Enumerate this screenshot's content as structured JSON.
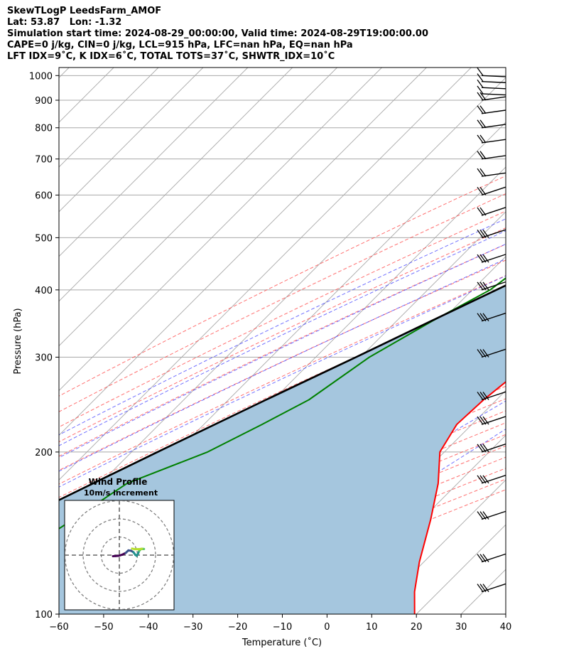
{
  "title_lines": [
    "SkewTLogP LeedsFarm_AMOF",
    "Lat: 53.87   Lon: -1.32",
    "Simulation start time: 2024-08-29_00:00:00, Valid time: 2024-08-29T19:00:00.00",
    "CAPE=0 j/kg, CIN=0 j/kg, LCL=915 hPa, LFC=nan hPa, EQ=nan hPa",
    "LFT IDX=9˚C, K IDX=6˚C, TOTAL TOTS=37˚C, SHWTR_IDX=10˚C"
  ],
  "chart_data": {
    "type": "line",
    "subtype": "skew-T log-P",
    "xlabel": "Temperature (˚C)",
    "ylabel": "Pressure (hPa)",
    "xlim": [
      -60,
      40
    ],
    "ylim": [
      1035,
      100
    ],
    "y_scale": "log",
    "x_ticks": [
      "−60",
      "−50",
      "−40",
      "−30",
      "−20",
      "−10",
      "0",
      "10",
      "20",
      "30",
      "40"
    ],
    "y_ticks": [
      "100",
      "200",
      "300",
      "400",
      "500",
      "600",
      "700",
      "800",
      "900",
      "1000"
    ],
    "grid": true,
    "series": [
      {
        "key": "temperature",
        "color": "#ff0000",
        "points": [
          [
            1000,
            15.6
          ],
          [
            975,
            13.6
          ],
          [
            950,
            12.6
          ],
          [
            925,
            11.8
          ],
          [
            900,
            11.0
          ],
          [
            850,
            10.8
          ],
          [
            800,
            10.4
          ],
          [
            750,
            10.0
          ],
          [
            700,
            9.4
          ],
          [
            650,
            9.0
          ],
          [
            600,
            8.0
          ],
          [
            550,
            6.0
          ],
          [
            500,
            4.0
          ],
          [
            450,
            0.9
          ],
          [
            400,
            -3.7
          ],
          [
            350,
            -7.5
          ],
          [
            300,
            -10.6
          ],
          [
            250,
            -12.9
          ],
          [
            225,
            -13.4
          ],
          [
            200,
            -11.0
          ],
          [
            175,
            -4.4
          ],
          [
            150,
            2.0
          ],
          [
            125,
            9.0
          ],
          [
            110,
            14.6
          ],
          [
            100,
            19.6
          ]
        ]
      },
      {
        "key": "dewpoint",
        "color": "#008000",
        "points": [
          [
            1000,
            9.5
          ],
          [
            975,
            9.4
          ],
          [
            950,
            9.0
          ],
          [
            925,
            8.5
          ],
          [
            900,
            7.5
          ],
          [
            850,
            3.5
          ],
          [
            800,
            -2.0
          ],
          [
            750,
            -7.0
          ],
          [
            700,
            -9.2
          ],
          [
            650,
            -9.0
          ],
          [
            600,
            -14.0
          ],
          [
            550,
            -25.0
          ],
          [
            500,
            -35.0
          ],
          [
            450,
            -34.0
          ],
          [
            400,
            -36.0
          ],
          [
            350,
            -42.0
          ],
          [
            300,
            -48.0
          ],
          [
            250,
            -52.0
          ],
          [
            225,
            -57.0
          ],
          [
            200,
            -63.0
          ],
          [
            175,
            -74.0
          ],
          [
            150,
            -78.0
          ],
          [
            125,
            -83.0
          ],
          [
            110,
            -86.0
          ],
          [
            100,
            -89.0
          ]
        ]
      },
      {
        "key": "parcel_profile",
        "color": "#000000",
        "points": [
          [
            1000,
            15.6
          ],
          [
            975,
            13.4
          ],
          [
            950,
            11.3
          ],
          [
            925,
            9.6
          ],
          [
            915,
            9.3
          ],
          [
            850,
            5.7
          ],
          [
            800,
            2.7
          ],
          [
            750,
            -0.5
          ],
          [
            700,
            -4.0
          ],
          [
            650,
            -7.8
          ],
          [
            600,
            -12.0
          ],
          [
            550,
            -16.8
          ],
          [
            500,
            -22.0
          ],
          [
            450,
            -27.9
          ],
          [
            400,
            -34.6
          ],
          [
            350,
            -42.3
          ],
          [
            300,
            -51.0
          ],
          [
            250,
            -61.6
          ],
          [
            200,
            -74.2
          ],
          [
            175,
            -81.6
          ],
          [
            150,
            -90.0
          ],
          [
            125,
            -100.0
          ],
          [
            100,
            -112.0
          ]
        ]
      }
    ],
    "lcl_pressure_hpa": 915,
    "shaded_region": "area between parcel profile and temperature",
    "wind_barb_pressures_hpa": [
      1000,
      975,
      950,
      925,
      900,
      850,
      800,
      750,
      700,
      650,
      600,
      550,
      500,
      450,
      400,
      350,
      300,
      250,
      225,
      200,
      175,
      150,
      125,
      110
    ],
    "reference_lines": [
      "isotherms",
      "dry adiabats",
      "moist adiabats",
      "mixing ratio lines"
    ],
    "colors": {
      "shading": "#a5c6de",
      "dry_adiabats": "#ff4040",
      "moist_adiabats": "#4040ff",
      "mixing_ratio": "#9932cc",
      "isotherms": "#a8a8a8"
    },
    "hodograph": {
      "title_lines": [
        "Wind Profile",
        "10m/s increment"
      ],
      "ring_increment_ms": 10,
      "rings": 3,
      "points_uv": [
        [
          -3.5,
          -0.6
        ],
        [
          -2.0,
          -0.5
        ],
        [
          -0.5,
          -0.4
        ],
        [
          1.5,
          0.2
        ],
        [
          3.5,
          1.2
        ],
        [
          5.0,
          2.6
        ],
        [
          6.5,
          2.4
        ],
        [
          7.8,
          1.6
        ],
        [
          8.8,
          0.2
        ],
        [
          9.6,
          -0.4
        ],
        [
          10.3,
          0.8
        ],
        [
          11.0,
          2.4
        ],
        [
          12.0,
          3.4
        ],
        [
          13.6,
          3.4
        ],
        [
          12.5,
          3.5
        ],
        [
          10.5,
          3.3
        ],
        [
          8.5,
          3.3
        ],
        [
          7.0,
          3.6
        ]
      ]
    }
  }
}
